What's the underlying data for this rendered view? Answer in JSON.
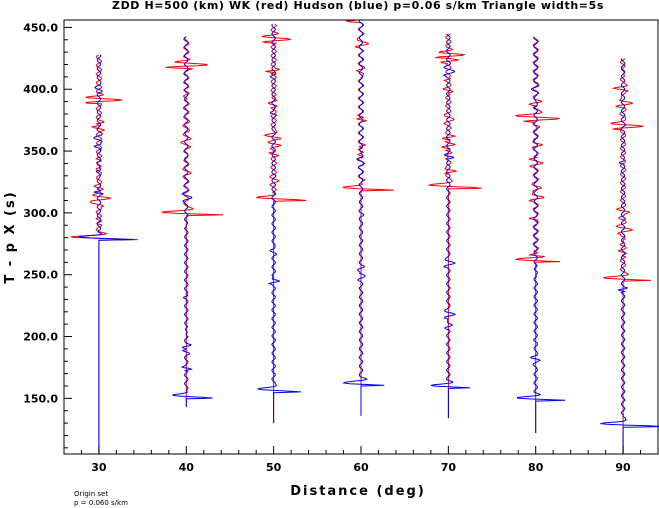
{
  "chart_data": {
    "type": "line",
    "title": "ZDD H=500 (km) WK (red) Hudson (blue) p=0.06 s/km Triangle width=5s",
    "xlabel": "Distance (deg)",
    "ylabel": "T - p X (s)",
    "xlim": [
      26,
      94
    ],
    "ylim": [
      105,
      456
    ],
    "x_ticks": [
      "30",
      "40",
      "50",
      "60",
      "70",
      "80",
      "90"
    ],
    "x_tick_values": [
      30,
      40,
      50,
      60,
      70,
      80,
      90
    ],
    "y_ticks": [
      "150.0",
      "200.0",
      "250.0",
      "300.0",
      "350.0",
      "400.0",
      "450.0"
    ],
    "y_tick_values": [
      150,
      200,
      250,
      300,
      350,
      400,
      450
    ],
    "series": [
      {
        "color": "#ff0000"
      },
      {
        "color": "#0000ff"
      }
    ],
    "traces": [
      {
        "distance": 30,
        "start": 105,
        "end": 428,
        "blue_onset": 278,
        "red_onset": 278,
        "blue_amp": 4.5,
        "red_amp": 5.0
      },
      {
        "distance": 40,
        "start": 143,
        "end": 443,
        "blue_onset": 150,
        "red_onset": 298,
        "blue_amp": 3.0,
        "red_amp": 4.5
      },
      {
        "distance": 50,
        "start": 130,
        "end": 453,
        "blue_onset": 155,
        "red_onset": 310,
        "blue_amp": 3.0,
        "red_amp": 4.0
      },
      {
        "distance": 60,
        "start": 136,
        "end": 456,
        "blue_onset": 160,
        "red_onset": 318,
        "blue_amp": 3.5,
        "red_amp": 4.0
      },
      {
        "distance": 70,
        "start": 134,
        "end": 445,
        "blue_onset": 158,
        "red_onset": 320,
        "blue_amp": 3.5,
        "red_amp": 3.5
      },
      {
        "distance": 80,
        "start": 122,
        "end": 443,
        "blue_onset": 148,
        "red_onset": 260,
        "blue_amp": 4.0,
        "red_amp": 4.0
      },
      {
        "distance": 90,
        "start": 105,
        "end": 425,
        "blue_onset": 127,
        "red_onset": 245,
        "blue_amp": 4.5,
        "red_amp": 3.5
      }
    ]
  },
  "footnote": {
    "line1": "Origin set",
    "line2": "p = 0.060 s/km"
  }
}
